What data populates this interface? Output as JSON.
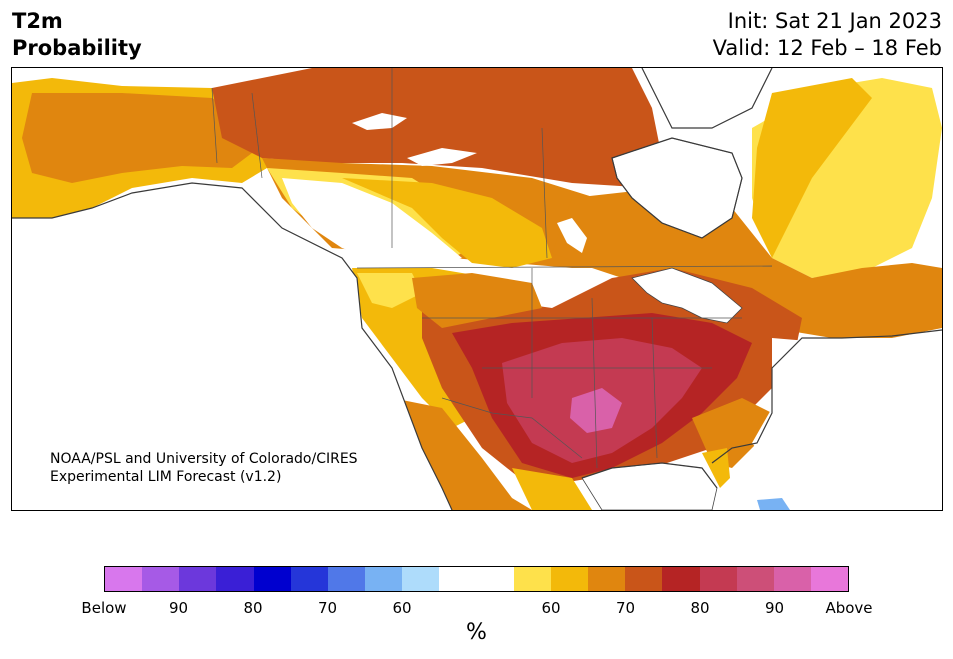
{
  "header": {
    "variable": "T2m",
    "quantity": "Probability",
    "init": "Init: Sat 21 Jan 2023",
    "valid": "Valid: 12 Feb – 18 Feb"
  },
  "credit": {
    "line1": "NOAA/PSL and University of Colorado/CIRES",
    "line2": "Experimental LIM Forecast (v1.2)"
  },
  "colorbar": {
    "colors": [
      "#d877ed",
      "#a65ae6",
      "#6c38dc",
      "#3a1fd6",
      "#0000cf",
      "#2536d9",
      "#5078e8",
      "#78b2f3",
      "#aedcfb",
      "#ffffff",
      "#ffffff",
      "#fee14b",
      "#f3b90a",
      "#e0860f",
      "#c95519",
      "#b52424",
      "#c43a52",
      "#cd4f78",
      "#d961a9",
      "#e877da"
    ],
    "labels": [
      "Below",
      "90",
      "80",
      "70",
      "60",
      "60",
      "70",
      "80",
      "90",
      "Above"
    ],
    "unit": "%"
  },
  "map": {
    "region": "North America",
    "categories": {
      "above_50": "#fee14b",
      "above_60": "#f3b90a",
      "above_65": "#e0860f",
      "above_70": "#c95519",
      "above_80": "#b52424",
      "above_85": "#c43a52",
      "above_90": "#d961a9",
      "below_60": "#aedcfb",
      "below_70": "#78b2f3",
      "neutral": "#ffffff"
    }
  }
}
